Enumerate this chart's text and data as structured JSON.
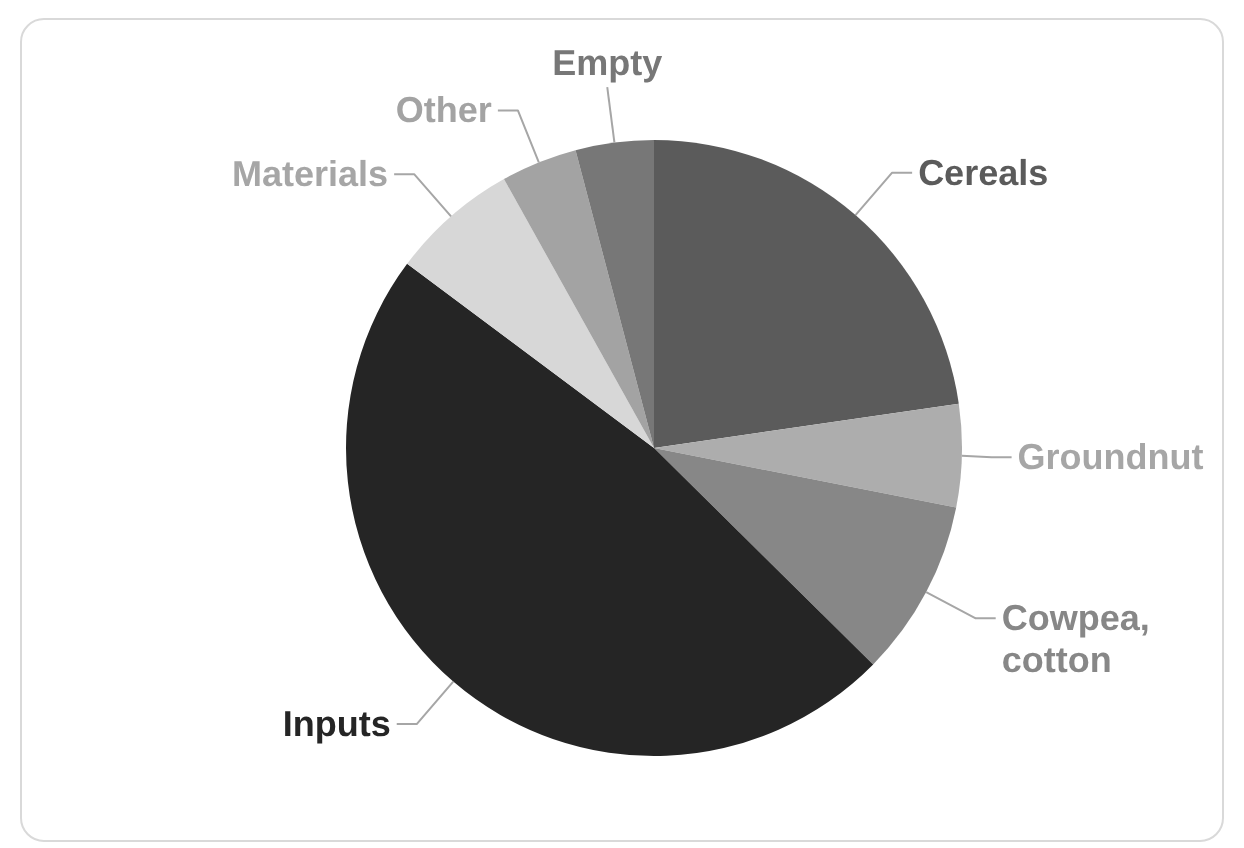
{
  "chart_data": {
    "type": "pie",
    "categories": [
      "Cereals",
      "Groundnut",
      "Cowpea, cotton",
      "Inputs",
      "Materials",
      "Other",
      "Empty"
    ],
    "values": [
      22.7,
      5.4,
      9.3,
      47.8,
      6.7,
      4.0,
      4.1
    ],
    "colors": [
      "#5b5b5b",
      "#adadad",
      "#878787",
      "#252525",
      "#d7d7d7",
      "#a3a3a3",
      "#777777"
    ]
  }
}
